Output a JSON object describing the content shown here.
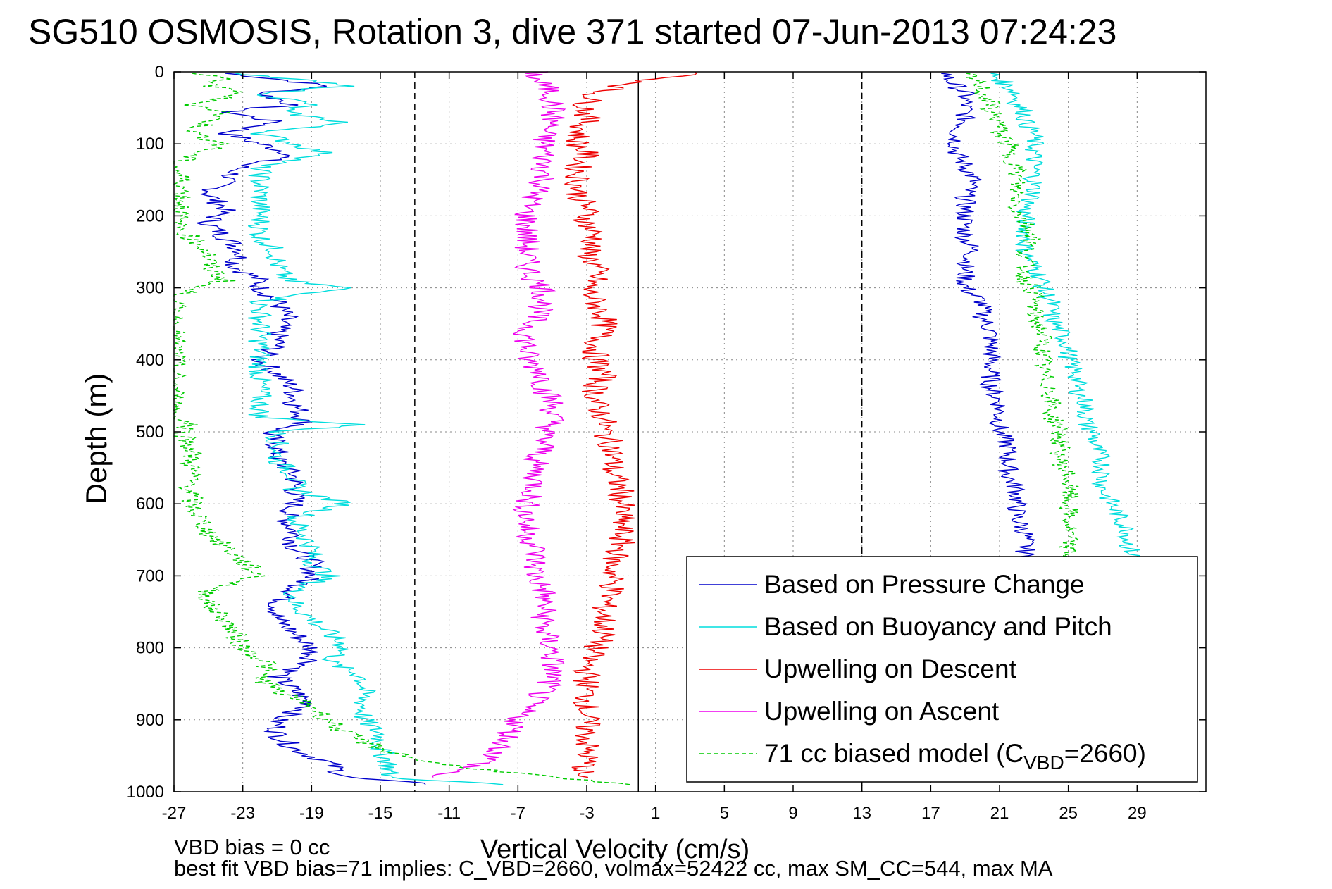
{
  "chart_data": {
    "type": "line",
    "title": "SG510 OSMOSIS, Rotation 3, dive 371 started 07-Jun-2013 07:24:23",
    "xlabel": "Vertical Velocity (cm/s)",
    "ylabel": "Depth (m)",
    "xlim": [
      -27,
      33
    ],
    "ylim": [
      0,
      1000
    ],
    "y_reversed": true,
    "grid": true,
    "legend_position": "bottom-right",
    "x_ticks": [
      "-27",
      "-23",
      "-19",
      "-15",
      "-11",
      "-7",
      "-3",
      "1",
      "5",
      "9",
      "13",
      "17",
      "21",
      "25",
      "29"
    ],
    "y_ticks": [
      "0",
      "100",
      "200",
      "300",
      "400",
      "500",
      "600",
      "700",
      "800",
      "900",
      "1000"
    ],
    "x_tick_values": [
      -27,
      -23,
      -19,
      -15,
      -11,
      -7,
      -3,
      1,
      5,
      9,
      13,
      17,
      21,
      25,
      29
    ],
    "y_tick_values": [
      0,
      100,
      200,
      300,
      400,
      500,
      600,
      700,
      800,
      900,
      1000
    ],
    "series": [
      {
        "name": "Based on Pressure Change",
        "color": "#0000cc",
        "style": "solid",
        "depth": [
          2,
          10,
          20,
          30,
          45,
          55,
          70,
          85,
          100,
          115,
          130,
          150,
          170,
          190,
          210,
          230,
          250,
          270,
          290,
          300,
          320,
          340,
          360,
          380,
          400,
          420,
          440,
          460,
          480,
          490,
          500,
          520,
          540,
          560,
          580,
          600,
          620,
          640,
          660,
          680,
          700,
          720,
          740,
          760,
          780,
          800,
          820,
          840,
          860,
          880,
          900,
          920,
          940,
          960,
          980,
          990
        ],
        "descent": [
          -24,
          -21,
          -18,
          -22,
          -20,
          -24,
          -21,
          -24,
          -22,
          -20,
          -23,
          -24,
          -25,
          -24,
          -25,
          -24,
          -23,
          -23.5,
          -22,
          -22,
          -21,
          -20.5,
          -21,
          -21,
          -22,
          -21,
          -20,
          -20,
          -19.5,
          -19.5,
          -21.5,
          -21,
          -21,
          -20,
          -20,
          -20,
          -20.5,
          -20,
          -20,
          -19,
          -19,
          -20,
          -21,
          -21,
          -20,
          -19,
          -19,
          -21,
          -20,
          -19,
          -21,
          -21,
          -20,
          -18,
          -17,
          -12
        ],
        "ascent": [
          18,
          18,
          18.5,
          19,
          19,
          19,
          19,
          18.5,
          18.5,
          18.5,
          19,
          19.5,
          19,
          19,
          19,
          19,
          19.5,
          19,
          19,
          19,
          20,
          20,
          20.5,
          20.5,
          20.5,
          20.5,
          20.5,
          21,
          21,
          21,
          21,
          21.5,
          21.5,
          21.5,
          22,
          22,
          22,
          22.5,
          22.5,
          22.5,
          22.5,
          23
        ]
      },
      {
        "name": "Based on Buoyancy and Pitch",
        "color": "#00dddd",
        "style": "solid",
        "depth": [
          2,
          10,
          20,
          30,
          45,
          55,
          70,
          85,
          100,
          115,
          130,
          150,
          170,
          190,
          210,
          230,
          250,
          270,
          290,
          300,
          320,
          340,
          360,
          380,
          400,
          420,
          440,
          460,
          480,
          490,
          500,
          520,
          540,
          560,
          580,
          600,
          620,
          640,
          660,
          680,
          700,
          720,
          740,
          760,
          780,
          800,
          820,
          840,
          860,
          880,
          900,
          920,
          940,
          960,
          980,
          990
        ],
        "descent": [
          -24,
          -20,
          -17,
          -22,
          -19,
          -21,
          -17,
          -22,
          -20,
          -18,
          -22,
          -22,
          -22,
          -22,
          -22,
          -22,
          -21,
          -21,
          -20.5,
          -17,
          -22,
          -22,
          -22,
          -22,
          -22,
          -22,
          -22,
          -22,
          -22,
          -16,
          -21,
          -21,
          -21,
          -20,
          -20,
          -17,
          -20,
          -19.5,
          -19,
          -19,
          -18,
          -20,
          -20,
          -19,
          -18,
          -17,
          -18,
          -16,
          -16,
          -16,
          -16,
          -15,
          -15,
          -14.5,
          -14.5,
          -8
        ],
        "ascent": [
          20.5,
          21,
          21.5,
          22,
          22,
          22.5,
          22.5,
          23,
          23,
          23,
          23,
          23,
          23,
          22.5,
          22.5,
          22.5,
          22.5,
          23,
          23.5,
          23.5,
          24,
          24,
          24.5,
          25,
          25,
          25.5,
          25.5,
          26,
          26,
          26,
          26.5,
          26.5,
          27,
          27,
          27,
          27.5,
          28,
          28.5,
          28.5,
          29,
          29,
          29
        ]
      },
      {
        "name": "Upwelling on Descent",
        "color": "#ee0000",
        "style": "solid",
        "depth": [
          0,
          10,
          20,
          30,
          45,
          55,
          70,
          85,
          100,
          115,
          130,
          150,
          170,
          190,
          210,
          230,
          250,
          270,
          290,
          300,
          320,
          340,
          360,
          380,
          400,
          420,
          440,
          460,
          480,
          490,
          500,
          520,
          540,
          560,
          580,
          600,
          620,
          640,
          660,
          680,
          700,
          720,
          740,
          760,
          780,
          800,
          820,
          840,
          860,
          880,
          900,
          920,
          940,
          960,
          980
        ],
        "values": [
          4,
          1,
          -1,
          -2.5,
          -3,
          -3,
          -3,
          -3.5,
          -3.5,
          -3,
          -3.5,
          -3.5,
          -3.5,
          -3,
          -3,
          -2.5,
          -3,
          -2.5,
          -2.5,
          -3,
          -2.5,
          -2,
          -2,
          -2.5,
          -2.5,
          -2,
          -2.5,
          -2.5,
          -2,
          -2,
          -2,
          -1.5,
          -1.5,
          -1.5,
          -1,
          -1,
          -1,
          -1,
          -1,
          -1.5,
          -1.5,
          -1.5,
          -2,
          -2,
          -2,
          -2.5,
          -3,
          -3,
          -3,
          -3,
          -3,
          -3,
          -3,
          -3,
          -3.5
        ]
      },
      {
        "name": "Upwelling on Ascent",
        "color": "#ee00ee",
        "style": "solid",
        "depth": [
          0,
          10,
          20,
          30,
          45,
          55,
          70,
          85,
          100,
          115,
          130,
          150,
          170,
          190,
          210,
          230,
          250,
          270,
          290,
          300,
          320,
          340,
          360,
          380,
          400,
          420,
          440,
          460,
          480,
          490,
          500,
          520,
          540,
          560,
          580,
          600,
          620,
          640,
          660,
          680,
          700,
          720,
          740,
          760,
          780,
          800,
          820,
          840,
          860,
          880,
          900,
          920,
          940,
          960,
          980
        ],
        "values": [
          -6,
          -6,
          -5.5,
          -5,
          -5,
          -5,
          -5,
          -5.5,
          -5.5,
          -5.5,
          -5.5,
          -5.5,
          -6,
          -6.5,
          -6.5,
          -6.5,
          -6.5,
          -6.5,
          -6,
          -5.5,
          -5.5,
          -6,
          -6.5,
          -6.5,
          -6.5,
          -5.5,
          -5.5,
          -5,
          -5,
          -5,
          -5.5,
          -5.5,
          -6,
          -6,
          -6,
          -6.5,
          -6.5,
          -6.5,
          -6,
          -6,
          -6,
          -5.5,
          -5.5,
          -5.5,
          -5.5,
          -5,
          -5,
          -5,
          -5.5,
          -6.5,
          -7,
          -7.5,
          -8,
          -9,
          -12
        ]
      },
      {
        "name": "71 cc biased model (C_VBD=2660)",
        "color": "#00cc00",
        "style": "dashed",
        "depth": [
          2,
          10,
          20,
          30,
          45,
          55,
          70,
          85,
          100,
          115,
          130,
          150,
          170,
          190,
          210,
          230,
          250,
          270,
          290,
          300,
          320,
          340,
          360,
          380,
          400,
          420,
          440,
          460,
          480,
          490,
          500,
          520,
          540,
          560,
          580,
          600,
          620,
          640,
          660,
          680,
          700,
          720,
          740,
          760,
          780,
          800,
          820,
          840,
          860,
          880,
          900,
          920,
          940,
          960,
          980,
          990
        ],
        "descent": [
          -26,
          -24,
          -25,
          -23,
          -26,
          -24,
          -25,
          -26,
          -24,
          -26,
          -27,
          -26.5,
          -26.5,
          -26.5,
          -27,
          -26,
          -25,
          -25,
          -24,
          -26,
          -27,
          -27,
          -27,
          -27,
          -27,
          -27,
          -27,
          -27,
          -27,
          -26,
          -26.5,
          -26,
          -26,
          -26,
          -26,
          -26,
          -25.5,
          -25,
          -24,
          -23,
          -22,
          -25,
          -25,
          -24,
          -23.5,
          -23,
          -21.5,
          -22,
          -21,
          -19,
          -18,
          -17,
          -15,
          -12,
          -5,
          -1
        ],
        "ascent": [
          19,
          19.5,
          20,
          20,
          20.5,
          20.5,
          21,
          21,
          21.5,
          21.5,
          22,
          22,
          22,
          22,
          22.5,
          23,
          22.5,
          22.5,
          22.5,
          23,
          23,
          23,
          23.5,
          23.5,
          23.5,
          23.5,
          24,
          24,
          24,
          24.5,
          24.5,
          24.5,
          24.5,
          25,
          25,
          25,
          25,
          25,
          25,
          25,
          25,
          25
        ]
      }
    ],
    "legend": [
      {
        "label": "Based on Pressure Change",
        "color": "#0000cc",
        "style": "solid"
      },
      {
        "label": "Based on Buoyancy and Pitch",
        "color": "#00dddd",
        "style": "solid"
      },
      {
        "label": "Upwelling on Descent",
        "color": "#ee0000",
        "style": "solid"
      },
      {
        "label": "Upwelling on Ascent",
        "color": "#ee00ee",
        "style": "solid"
      },
      {
        "label": "71 cc biased model (C",
        "sub": "VBD",
        "suffix": "=2660)",
        "color": "#00cc00",
        "style": "dashed"
      }
    ],
    "reference_lines": [
      {
        "x": 0,
        "style": "solid",
        "color": "#000000"
      },
      {
        "x": -13,
        "style": "dashed",
        "color": "#000000"
      },
      {
        "x": 13,
        "style": "dashed",
        "color": "#000000"
      }
    ],
    "annotations": [
      "VBD bias = 0 cc",
      "best fit VBD bias=71 implies: C_VBD=2660, volmax=52422 cc, max SM_CC=544, max MA"
    ]
  }
}
